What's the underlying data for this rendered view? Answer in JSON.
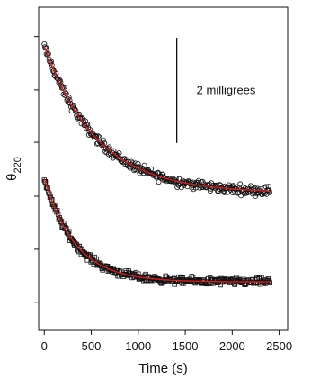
{
  "chart_data": {
    "type": "scatter",
    "xlabel": "Time (s)",
    "ylabel_symbol": "θ",
    "ylabel_subscript": "220",
    "xlim": [
      -60,
      2590
    ],
    "ylim": [
      0,
      1
    ],
    "x_ticks": [
      0,
      500,
      1000,
      1500,
      2000,
      2500
    ],
    "y_ticks": [
      0.087,
      0.251,
      0.415,
      0.582,
      0.744,
      0.909
    ],
    "y_tick_labels_shown": false,
    "grid": false,
    "legend": "none",
    "scale_bar": {
      "label": "2 milligrees",
      "x": 1410,
      "y_top": 0.905,
      "y_bottom": 0.58
    },
    "series": [
      {
        "marker": "circle",
        "color": "#111111",
        "fit_color": "#d81b1b",
        "x_start": 0,
        "x_end": 2400,
        "y_start": 0.88,
        "y_plateau": 0.425,
        "tau_s": 560,
        "noise": 0.022
      },
      {
        "marker": "square",
        "color": "#111111",
        "fit_color": "#d81b1b",
        "x_start": 0,
        "x_end": 2400,
        "y_start": 0.47,
        "y_plateau": 0.15,
        "tau_s": 330,
        "noise": 0.017
      }
    ]
  }
}
